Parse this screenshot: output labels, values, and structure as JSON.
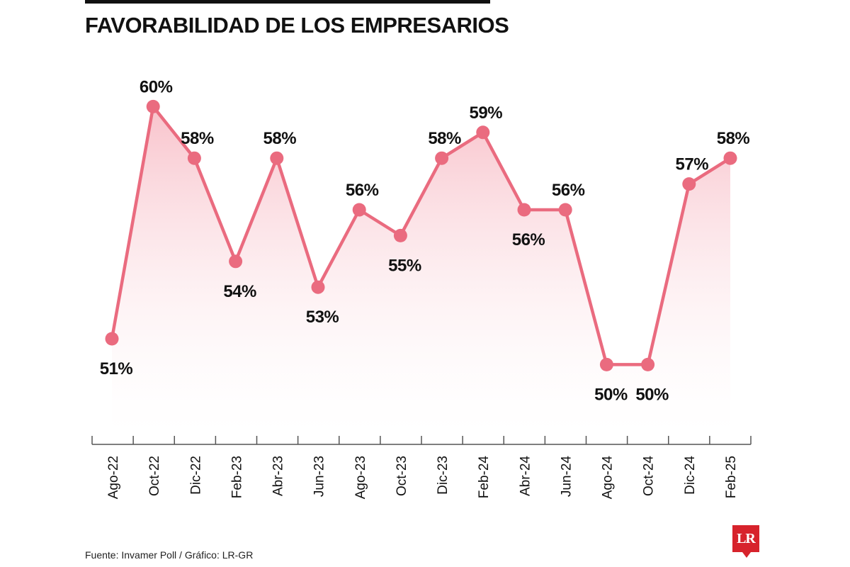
{
  "title": "FAVORABILIDAD DE LOS EMPRESARIOS",
  "source": "Fuente: Invamer Poll / Gráfico: LR-GR",
  "logo_text": "LR",
  "colors": {
    "line": "#ea6b7f",
    "marker": "#ea6b7f",
    "fill_top": "#f7b8c2",
    "axis": "#555555",
    "text": "#111111",
    "logo": "#d7232c"
  },
  "chart_data": {
    "type": "area",
    "categories": [
      "Ago-22",
      "Oct-22",
      "Dic-22",
      "Feb-23",
      "Abr-23",
      "Jun-23",
      "Ago-23",
      "Oct-23",
      "Dic-23",
      "Feb-24",
      "Abr-24",
      "Jun-24",
      "Ago-24",
      "Oct-24",
      "Dic-24",
      "Feb-25"
    ],
    "values": [
      51,
      60,
      58,
      54,
      58,
      53,
      56,
      55,
      58,
      59,
      56,
      56,
      50,
      50,
      57,
      58
    ],
    "data_labels": [
      "51%",
      "60%",
      "58%",
      "54%",
      "58%",
      "53%",
      "56%",
      "55%",
      "58%",
      "59%",
      "56%",
      "56%",
      "50%",
      "50%",
      "57%",
      "58%"
    ],
    "title": "FAVORABILIDAD DE LOS EMPRESARIOS",
    "xlabel": "",
    "ylabel": "",
    "grid": false,
    "legend": "none"
  }
}
